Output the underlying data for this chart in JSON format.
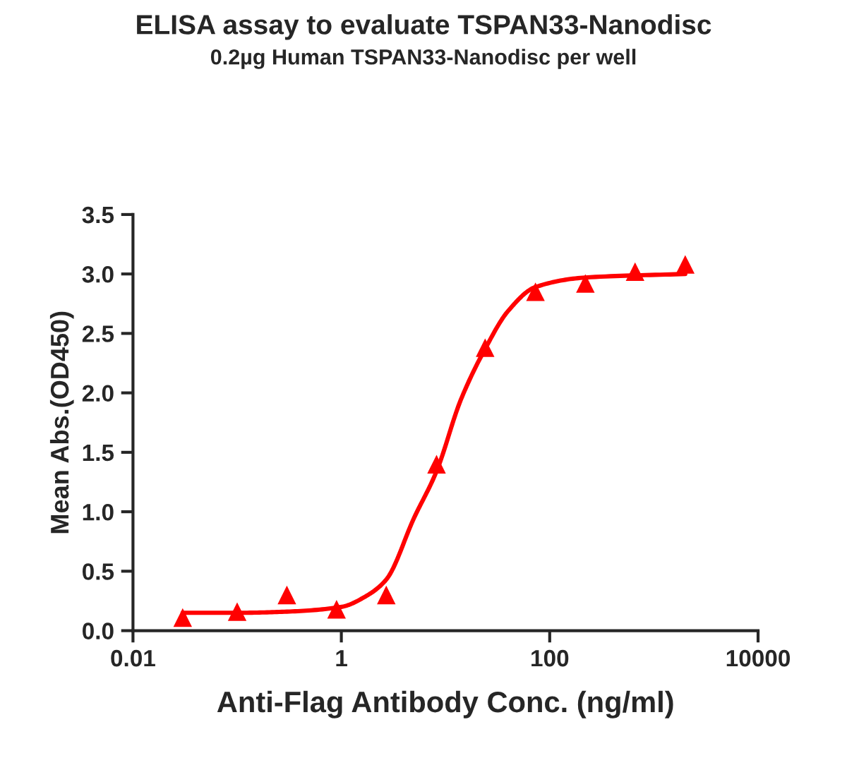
{
  "chart_data": {
    "type": "scatter",
    "title": "ELISA assay to evaluate TSPAN33-Nanodisc",
    "subtitle": "0.2µg Human TSPAN33-Nanodisc per well",
    "xlabel": "Anti-Flag Antibody Conc. (ng/ml)",
    "ylabel": "Mean Abs.(OD450)",
    "log": "x",
    "xlim": [
      0.01,
      10000
    ],
    "xticks": [
      {
        "value": 0.01,
        "label": "0.01"
      },
      {
        "value": 1,
        "label": "1"
      },
      {
        "value": 100,
        "label": "100"
      },
      {
        "value": 10000,
        "label": "10000"
      }
    ],
    "ylim": [
      0,
      3.5
    ],
    "yticks": [
      {
        "value": 0,
        "label": "0.0"
      },
      {
        "value": 0.5,
        "label": "0.5"
      },
      {
        "value": 1,
        "label": "1.0"
      },
      {
        "value": 1.5,
        "label": "1.5"
      },
      {
        "value": 2,
        "label": "2.0"
      },
      {
        "value": 2.5,
        "label": "2.5"
      },
      {
        "value": 3,
        "label": "3.0"
      },
      {
        "value": 3.5,
        "label": "3.5"
      }
    ],
    "grid": false,
    "legend": false,
    "series": [
      {
        "marker": "triangle",
        "color": "#ff0000",
        "x": [
          0.03,
          0.1,
          0.3,
          0.9,
          2.7,
          8.2,
          24,
          73,
          220,
          660,
          2000
        ],
        "values": [
          0.11,
          0.16,
          0.3,
          0.18,
          0.3,
          1.4,
          2.38,
          2.85,
          2.92,
          3.02,
          3.08
        ]
      },
      {
        "type": "line",
        "marker": "none",
        "line_style": "solid",
        "color": "#ff0000",
        "x": [
          0.03,
          0.1,
          0.3,
          1,
          1.8,
          2.7,
          5,
          8.2,
          14,
          24,
          40,
          73,
          220,
          2000
        ],
        "values": [
          0.15,
          0.15,
          0.16,
          0.2,
          0.3,
          0.43,
          0.95,
          1.34,
          1.94,
          2.37,
          2.69,
          2.89,
          2.97,
          3.0
        ]
      }
    ]
  }
}
